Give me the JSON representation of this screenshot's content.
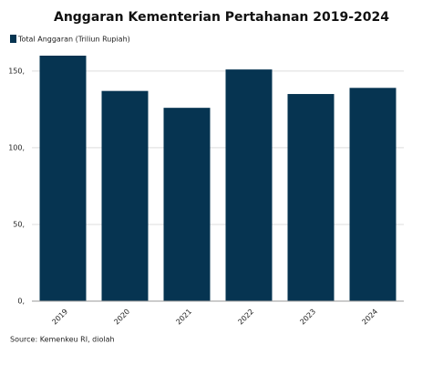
{
  "chart_data": {
    "type": "bar",
    "title": "Anggaran Kementerian Pertahanan 2019-2024",
    "legend": "Total Anggaran (Triliun Rupiah)",
    "categories": [
      "2019",
      "2020",
      "2021",
      "2022",
      "2023",
      "2024"
    ],
    "values": [
      160,
      137,
      126,
      151,
      135,
      139
    ],
    "color": "#063451",
    "ylim": [
      0,
      160
    ],
    "yticks": [
      {
        "value": 0,
        "label": "0,"
      },
      {
        "value": 50,
        "label": "50,"
      },
      {
        "value": 100,
        "label": "100,"
      },
      {
        "value": 150,
        "label": "150,"
      }
    ],
    "grid": true,
    "source": "Source: Kemenkeu RI, diolah"
  }
}
